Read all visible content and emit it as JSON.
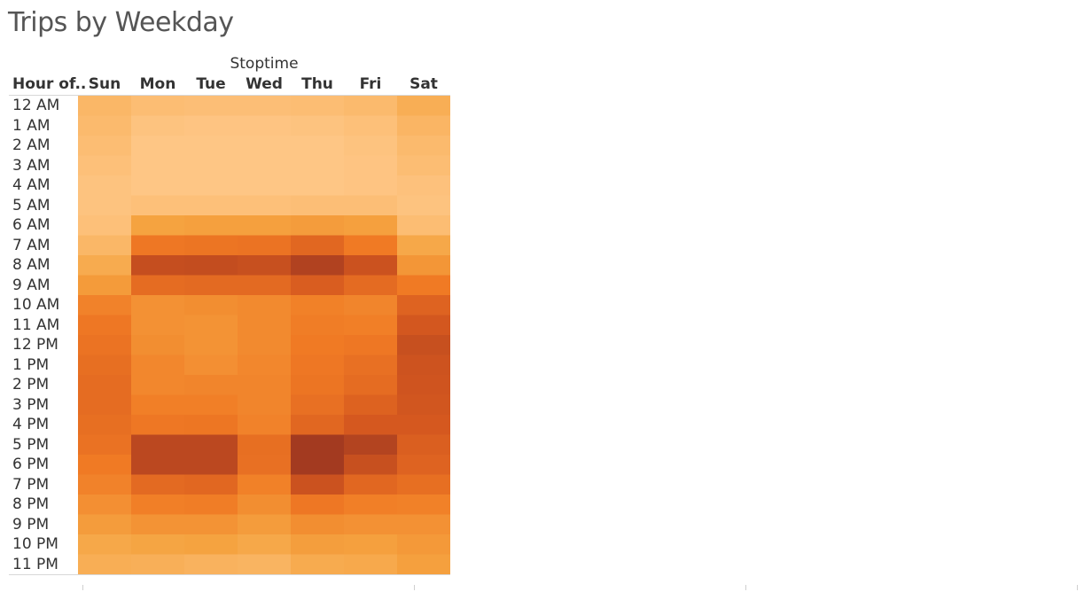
{
  "title": "Trips by Weekday",
  "chart_data": {
    "type": "heatmap",
    "title": "Trips by Weekday",
    "column_group_label": "Stoptime",
    "row_header_label": "Hour of..",
    "columns": [
      "Sun",
      "Mon",
      "Tue",
      "Wed",
      "Thu",
      "Fri",
      "Sat"
    ],
    "rows": [
      "12 AM",
      "1 AM",
      "2 AM",
      "3 AM",
      "4 AM",
      "5 AM",
      "6 AM",
      "7 AM",
      "8 AM",
      "9 AM",
      "10 AM",
      "11 AM",
      "12 PM",
      "1 PM",
      "2 PM",
      "3 PM",
      "4 PM",
      "5 PM",
      "6 PM",
      "7 PM",
      "8 PM",
      "9 PM",
      "10 PM",
      "11 PM"
    ],
    "relative_intensity": [
      [
        0.12,
        0.08,
        0.07,
        0.07,
        0.08,
        0.1,
        0.18
      ],
      [
        0.1,
        0.04,
        0.03,
        0.03,
        0.04,
        0.06,
        0.13
      ],
      [
        0.08,
        0.02,
        0.02,
        0.02,
        0.02,
        0.04,
        0.1
      ],
      [
        0.06,
        0.02,
        0.02,
        0.02,
        0.02,
        0.03,
        0.08
      ],
      [
        0.04,
        0.02,
        0.02,
        0.02,
        0.02,
        0.03,
        0.05
      ],
      [
        0.04,
        0.06,
        0.06,
        0.06,
        0.07,
        0.07,
        0.04
      ],
      [
        0.06,
        0.25,
        0.27,
        0.27,
        0.29,
        0.27,
        0.08
      ],
      [
        0.12,
        0.52,
        0.54,
        0.55,
        0.64,
        0.5,
        0.22
      ],
      [
        0.2,
        0.83,
        0.84,
        0.82,
        0.93,
        0.8,
        0.33
      ],
      [
        0.3,
        0.6,
        0.62,
        0.62,
        0.71,
        0.61,
        0.5
      ],
      [
        0.45,
        0.36,
        0.38,
        0.4,
        0.46,
        0.43,
        0.67
      ],
      [
        0.52,
        0.36,
        0.35,
        0.4,
        0.48,
        0.47,
        0.76
      ],
      [
        0.55,
        0.38,
        0.35,
        0.4,
        0.5,
        0.52,
        0.82
      ],
      [
        0.58,
        0.42,
        0.37,
        0.42,
        0.52,
        0.57,
        0.79
      ],
      [
        0.6,
        0.42,
        0.43,
        0.43,
        0.54,
        0.6,
        0.78
      ],
      [
        0.6,
        0.47,
        0.47,
        0.43,
        0.57,
        0.68,
        0.77
      ],
      [
        0.58,
        0.52,
        0.53,
        0.45,
        0.64,
        0.75,
        0.75
      ],
      [
        0.56,
        0.88,
        0.88,
        0.58,
        1.0,
        0.92,
        0.7
      ],
      [
        0.5,
        0.88,
        0.88,
        0.57,
        1.0,
        0.82,
        0.67
      ],
      [
        0.45,
        0.62,
        0.64,
        0.46,
        0.8,
        0.64,
        0.58
      ],
      [
        0.37,
        0.47,
        0.48,
        0.38,
        0.52,
        0.47,
        0.46
      ],
      [
        0.29,
        0.35,
        0.35,
        0.29,
        0.38,
        0.36,
        0.36
      ],
      [
        0.22,
        0.24,
        0.25,
        0.22,
        0.28,
        0.27,
        0.31
      ],
      [
        0.18,
        0.17,
        0.15,
        0.14,
        0.2,
        0.21,
        0.27
      ]
    ],
    "color_scale": [
      "#ffc98b",
      "#f5a340",
      "#f07a24",
      "#d5581f",
      "#a33a20"
    ],
    "legend": "none",
    "grid": false
  }
}
